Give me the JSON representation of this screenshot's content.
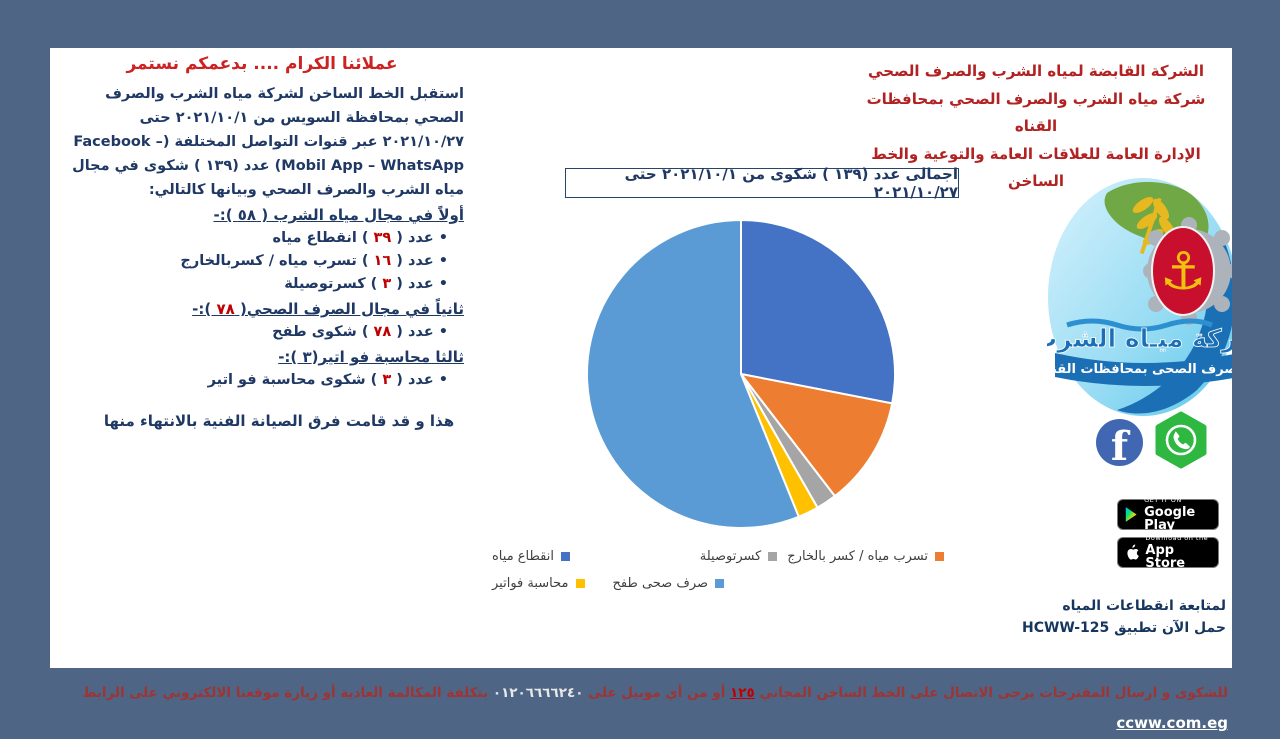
{
  "page": {
    "bg": "#4F6585"
  },
  "right_header": {
    "line1": "الشركة القابضة لمياه الشرب والصرف الصحي",
    "line2": "شركة مياه الشرب والصرف الصحي بمحافظات القناه",
    "line3": "الإدارة العامة للعلاقات العامة والتوعية والخط الساخن"
  },
  "left": {
    "title": "عملائنا الكرام .... بدعمكم نستمر",
    "intro": "استقبل الخط الساخن لشركة مياه الشرب والصرف الصحي بمحافظة السويس من ٢٠٢١/١٠/١ حتى ٢٠٢١/١٠/٢٧ عبر قنوات التواصل المختلفة (Facebook – Mobil App – WhatsApp) عدد (١٣٩ ) شكوى في مجال مياه الشرب والصرف الصحي وبيانها كالتالي:",
    "sections": [
      {
        "heading_pre": "أولاً في مجال مياه الشرب ( ",
        "heading_num": "٥٨",
        "heading_post": " ):-",
        "items": [
          {
            "pre": "عدد ( ",
            "num": "٣٩",
            "post": " ) انقطاع مياه"
          },
          {
            "pre": "عدد ( ",
            "num": "١٦",
            "post": " ) تسرب مياه / كسربالخارج"
          },
          {
            "pre": "عدد ( ",
            "num": "٣",
            "post": " ) كسرتوصيلة"
          }
        ]
      },
      {
        "heading_pre": "ثانياً في مجال الصرف الصحي( ",
        "heading_num": "٧٨",
        "heading_post": " ):-",
        "items": [
          {
            "pre": "عدد ( ",
            "num": "٧٨",
            "post": " ) شكوى طفح"
          }
        ]
      },
      {
        "heading_pre": "ثالثا محاسبة فو اتير(",
        "heading_num": "٣",
        "heading_post": " ):-",
        "items": [
          {
            "pre": "عدد ( ",
            "num": "٣",
            "post": " ) شكوى محاسبة فو اتير"
          }
        ]
      }
    ],
    "closing": "هذا و قد قامت فرق الصيانة الفنية بالانتهاء منها"
  },
  "chart_data": {
    "type": "pie",
    "title": "اجمالى عدد (١٣٩ ) شكوى من ٢٠٢١/١٠/١ حتى ٢٠٢١/١٠/٢٧",
    "categories": [
      "انقطاع مياه",
      "تسرب مياه / كسر بالخارج",
      "كسرتوصيلة",
      "محاسبة فواتير",
      "صرف صحى طفح"
    ],
    "values": [
      39,
      16,
      3,
      3,
      78
    ],
    "total": 139,
    "colors": [
      "#4472C4",
      "#ED7D31",
      "#A5A5A5",
      "#FFC000",
      "#5B9BD5"
    ],
    "start_angle_deg": 0,
    "direction": "clockwise",
    "legend_position": "bottom"
  },
  "logo": {
    "line1": "شركة ميـاه الشرب",
    "line2": "والصرف الصحى بمحافظات القناة"
  },
  "social": {
    "facebook_letter": "f"
  },
  "badges": {
    "google_play": {
      "tagline": "GET IT ON",
      "name": "Google Play"
    },
    "app_store": {
      "tagline": "Download on the",
      "name": "App Store"
    }
  },
  "app_promo": {
    "line1": "لمتابعة انقطاعات المياه",
    "line2_text": "حمل الآن تطبيق ",
    "app_id": "HCWW-125"
  },
  "footer": {
    "part1": "للشكوى و ارسال المقترحات يرجى الاتصال على الخط الساخن المجاني ",
    "hotline": "١٢٥",
    "part2": " أو من أي موبيل على ",
    "phone": "٠١٢٠٦٦٦٦٢٤٠",
    "part3": " بتكلفة المكالمة العادية  أو زيارة موقعنا الالكتروني على الرابط ",
    "link": "ccww.com.eg"
  }
}
